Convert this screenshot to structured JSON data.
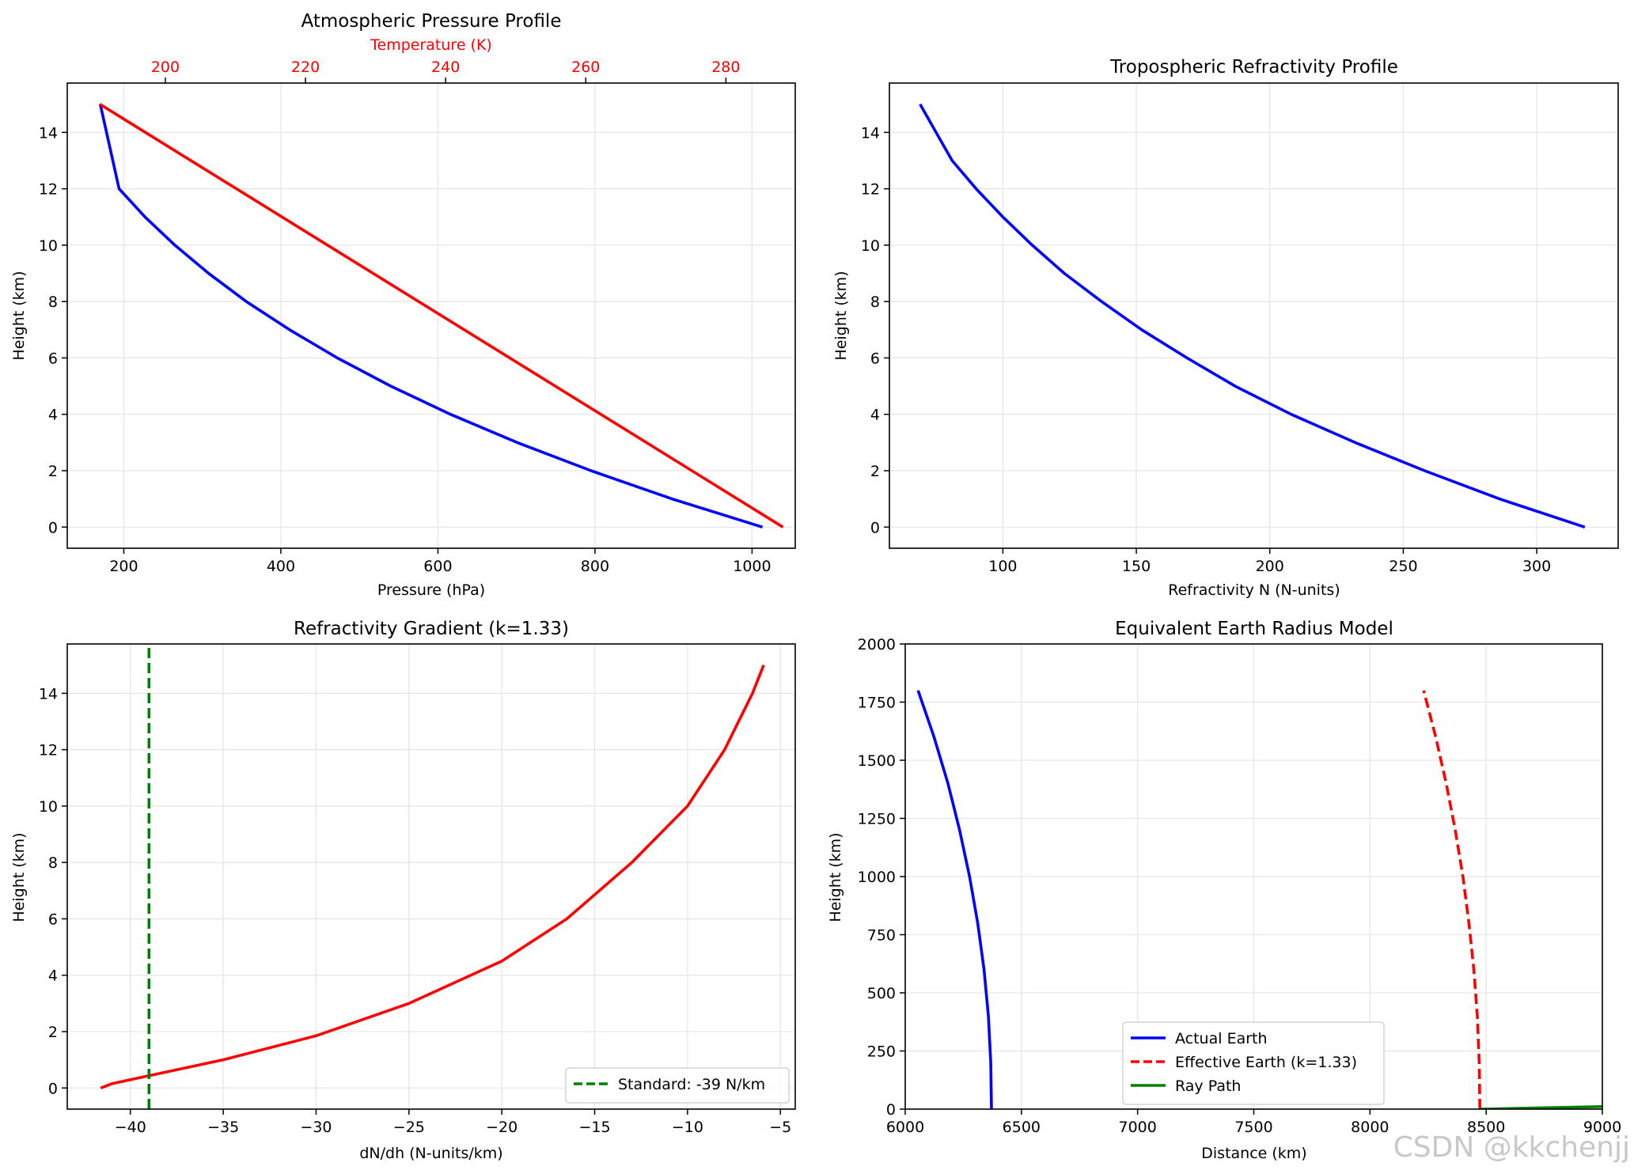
{
  "watermark": "CSDN @kkchenjj",
  "chart_data": [
    {
      "id": "pressure",
      "type": "line",
      "title": "Atmospheric Pressure Profile",
      "xlabel": "Pressure (hPa)",
      "ylabel": "Height (km)",
      "xlim": [
        128,
        1055
      ],
      "ylim": [
        -0.75,
        15.75
      ],
      "xticks": [
        200,
        400,
        600,
        800,
        1000
      ],
      "yticks": [
        0,
        2,
        4,
        6,
        8,
        10,
        12,
        14
      ],
      "grid": true,
      "top_axis": {
        "label": "Temperature (K)",
        "color": "#ff0000",
        "xlim": [
          186,
          289.9
        ],
        "ticks": [
          200,
          220,
          240,
          260,
          280
        ]
      },
      "series": [
        {
          "name": "Pressure",
          "axis": "bottom",
          "color": "#0000ff",
          "x": [
            1013.25,
            898,
            795,
            701,
            616,
            540,
            472,
            411,
            356,
            308,
            265,
            227,
            194,
            170
          ],
          "y": [
            0,
            1,
            2,
            3,
            4,
            5,
            6,
            7,
            8,
            9,
            10,
            11,
            12,
            15
          ]
        },
        {
          "name": "Temperature",
          "axis": "top",
          "color": "#ff0000",
          "x": [
            288.15,
            190.65
          ],
          "y": [
            0,
            15
          ]
        }
      ]
    },
    {
      "id": "refractivity",
      "type": "line",
      "title": "Tropospheric Refractivity Profile",
      "xlabel": "Refractivity N (N-units)",
      "ylabel": "Height (km)",
      "xlim": [
        57.5,
        330.5
      ],
      "ylim": [
        -0.75,
        15.75
      ],
      "xticks": [
        100,
        150,
        200,
        250,
        300
      ],
      "yticks": [
        0,
        2,
        4,
        6,
        8,
        10,
        12,
        14
      ],
      "grid": true,
      "series": [
        {
          "name": "Refractivity",
          "color": "#0000ff",
          "x": [
            318,
            286,
            258,
            232,
            208,
            187,
            169,
            152,
            137,
            123,
            111,
            100,
            90,
            81,
            75,
            69
          ],
          "y": [
            0,
            1,
            2,
            3,
            4,
            5,
            6,
            7,
            8,
            9,
            10,
            11,
            12,
            13,
            14,
            15
          ]
        }
      ]
    },
    {
      "id": "gradient",
      "type": "line",
      "title": "Refractivity Gradient (k=1.33)",
      "xlabel": "dN/dh (N-units/km)",
      "ylabel": "Height (km)",
      "xlim": [
        -43.4,
        -4.2
      ],
      "ylim": [
        -0.75,
        15.75
      ],
      "xticks": [
        -40,
        -35,
        -30,
        -25,
        -20,
        -15,
        -10,
        -5
      ],
      "xtick_labels": [
        "−40",
        "−35",
        "−30",
        "−25",
        "−20",
        "−15",
        "−10",
        "−5"
      ],
      "yticks": [
        0,
        2,
        4,
        6,
        8,
        10,
        12,
        14
      ],
      "grid": true,
      "legend": {
        "position": "lower-right",
        "entries": [
          {
            "label": "Standard: -39 N/km",
            "color": "#008000",
            "dash": true
          }
        ]
      },
      "series": [
        {
          "name": "dN/dh",
          "color": "#ff0000",
          "x": [
            -41.6,
            -41.0,
            -38.9,
            -35.0,
            -30.0,
            -25.0,
            -20.0,
            -16.5,
            -13.0,
            -10.0,
            -8.0,
            -6.5,
            -5.9
          ],
          "y": [
            0,
            0.15,
            0.45,
            1.0,
            1.85,
            3.0,
            4.5,
            6.0,
            8.0,
            10.0,
            12.0,
            14.0,
            15.0
          ]
        },
        {
          "name": "Standard: -39 N/km",
          "color": "#008000",
          "dash": true,
          "x": [
            -39,
            -39
          ],
          "y": [
            -0.75,
            15.75
          ]
        }
      ]
    },
    {
      "id": "earth",
      "type": "line",
      "title": "Equivalent Earth Radius Model",
      "xlabel": "Distance (km)",
      "ylabel": "Height (km)",
      "xlim": [
        6000,
        9000
      ],
      "ylim": [
        0,
        2000
      ],
      "xticks": [
        6000,
        6500,
        7000,
        7500,
        8000,
        8500,
        9000
      ],
      "yticks": [
        0,
        250,
        500,
        750,
        1000,
        1250,
        1500,
        1750,
        2000
      ],
      "grid": true,
      "legend": {
        "position": "lower-center",
        "entries": [
          {
            "label": "Actual Earth",
            "color": "#0000ff",
            "dash": false
          },
          {
            "label": "Effective Earth (k=1.33)",
            "color": "#ff0000",
            "dash": true
          },
          {
            "label": "Ray Path",
            "color": "#008000",
            "dash": false
          }
        ]
      },
      "series": [
        {
          "name": "Actual Earth",
          "color": "#0000ff",
          "x": [
            6371,
            6368,
            6358,
            6339,
            6312,
            6277,
            6234,
            6184,
            6124,
            6055
          ],
          "y": [
            0,
            200,
            400,
            600,
            800,
            1000,
            1200,
            1400,
            1600,
            1800
          ]
        },
        {
          "name": "Effective Earth (k=1.33)",
          "color": "#ff0000",
          "dash": true,
          "x": [
            8473,
            8470,
            8462,
            8447,
            8426,
            8400,
            8367,
            8328,
            8283,
            8231
          ],
          "y": [
            0,
            200,
            400,
            600,
            800,
            1000,
            1200,
            1400,
            1600,
            1800
          ]
        },
        {
          "name": "Ray Path",
          "color": "#008000",
          "x": [
            8473,
            9000
          ],
          "y": [
            0,
            11
          ]
        }
      ]
    }
  ]
}
